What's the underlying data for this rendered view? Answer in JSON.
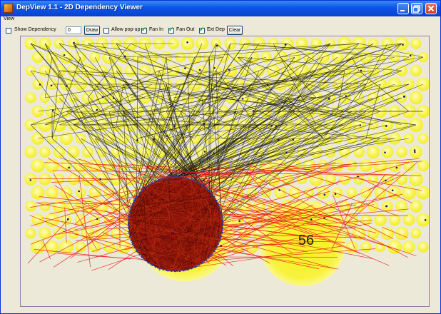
{
  "window": {
    "title": "DepView 1.1 - 2D Dependency Viewer"
  },
  "menu": {
    "items": [
      "View"
    ]
  },
  "toolbar": {
    "show_dependency": {
      "label": "Show Dependency",
      "checked": false
    },
    "depth_value": "0",
    "draw_label": "Draw",
    "allow_popup": {
      "label": "Allow pop-up",
      "checked": false
    },
    "fan_in": {
      "label": "Fan In",
      "checked": true
    },
    "fan_out": {
      "label": "Fan Out",
      "checked": true
    },
    "ext_dep": {
      "label": "Ext Dep",
      "checked": true
    },
    "clear_label": "Clear"
  },
  "canvas": {
    "highlighted_node_label": "56",
    "colors": {
      "node_fill": "#f7f23a",
      "node_glow": "#fbfaa0",
      "fan_out_edges": "#111111",
      "fan_in_edges": "#e01010",
      "cluster_fill": "#8a1208",
      "cluster_outline": "#3040c0",
      "background": "#ece9d8"
    }
  }
}
